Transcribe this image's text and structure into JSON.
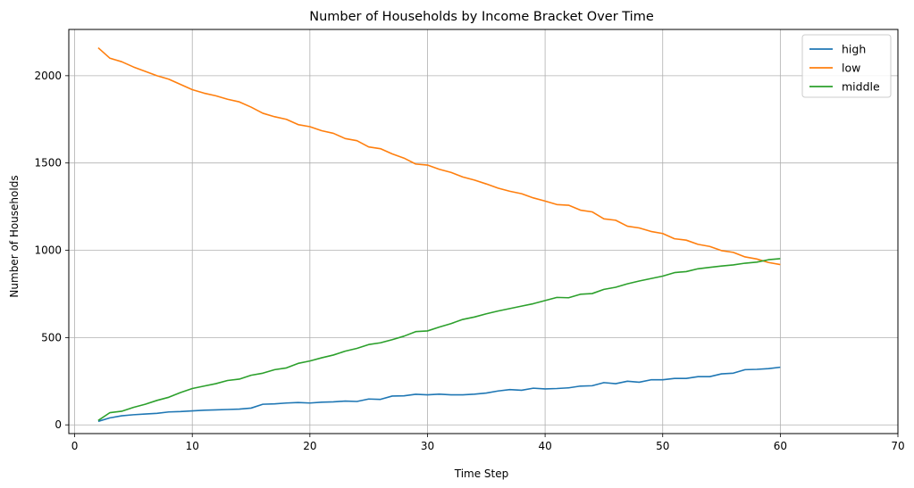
{
  "chart_data": {
    "type": "line",
    "title": "Number of Households by Income Bracket Over Time",
    "xlabel": "Time Step",
    "ylabel": "Number of Households",
    "xlim": [
      -0.5,
      70
    ],
    "ylim": [
      -50,
      2265
    ],
    "xticks": [
      0,
      10,
      20,
      30,
      40,
      50,
      60,
      70
    ],
    "yticks": [
      0,
      500,
      1000,
      1500,
      2000
    ],
    "grid": true,
    "legend_position": "top-right",
    "x": [
      2,
      3,
      4,
      5,
      6,
      7,
      8,
      9,
      10,
      11,
      12,
      13,
      14,
      15,
      16,
      17,
      18,
      19,
      20,
      21,
      22,
      23,
      24,
      25,
      26,
      27,
      28,
      29,
      30,
      31,
      32,
      33,
      34,
      35,
      36,
      37,
      38,
      39,
      40,
      41,
      42,
      43,
      44,
      45,
      46,
      47,
      48,
      49,
      50,
      51,
      52,
      53,
      54,
      55,
      56,
      57,
      58,
      59,
      60
    ],
    "series": [
      {
        "name": "high",
        "color": "#1f77b4",
        "values": [
          20,
          40,
          52,
          58,
          62,
          66,
          74,
          76,
          80,
          84,
          86,
          88,
          90,
          96,
          118,
          120,
          125,
          128,
          125,
          130,
          132,
          136,
          134,
          148,
          146,
          165,
          166,
          175,
          172,
          176,
          172,
          172,
          176,
          182,
          194,
          202,
          198,
          210,
          206,
          208,
          212,
          222,
          224,
          242,
          236,
          250,
          244,
          258,
          258,
          266,
          266,
          276,
          276,
          292,
          296,
          316,
          318,
          322,
          330
        ]
      },
      {
        "name": "low",
        "color": "#ff7f0e",
        "values": [
          2160,
          2100,
          2080,
          2050,
          2025,
          2000,
          1980,
          1950,
          1920,
          1900,
          1885,
          1865,
          1850,
          1820,
          1785,
          1765,
          1750,
          1720,
          1708,
          1685,
          1670,
          1640,
          1628,
          1592,
          1582,
          1552,
          1528,
          1494,
          1488,
          1464,
          1446,
          1420,
          1402,
          1380,
          1356,
          1338,
          1324,
          1300,
          1282,
          1262,
          1258,
          1230,
          1220,
          1180,
          1172,
          1138,
          1128,
          1108,
          1096,
          1066,
          1058,
          1034,
          1022,
          998,
          988,
          962,
          950,
          930,
          918
        ]
      },
      {
        "name": "middle",
        "color": "#2ca02c",
        "values": [
          25,
          70,
          78,
          100,
          118,
          140,
          158,
          185,
          208,
          222,
          236,
          254,
          262,
          284,
          296,
          316,
          326,
          352,
          366,
          384,
          400,
          422,
          438,
          460,
          470,
          488,
          508,
          534,
          538,
          560,
          580,
          604,
          618,
          636,
          652,
          666,
          680,
          694,
          712,
          730,
          728,
          748,
          752,
          776,
          788,
          808,
          824,
          838,
          852,
          872,
          878,
          894,
          902,
          910,
          916,
          926,
          932,
          946,
          952
        ]
      }
    ]
  }
}
